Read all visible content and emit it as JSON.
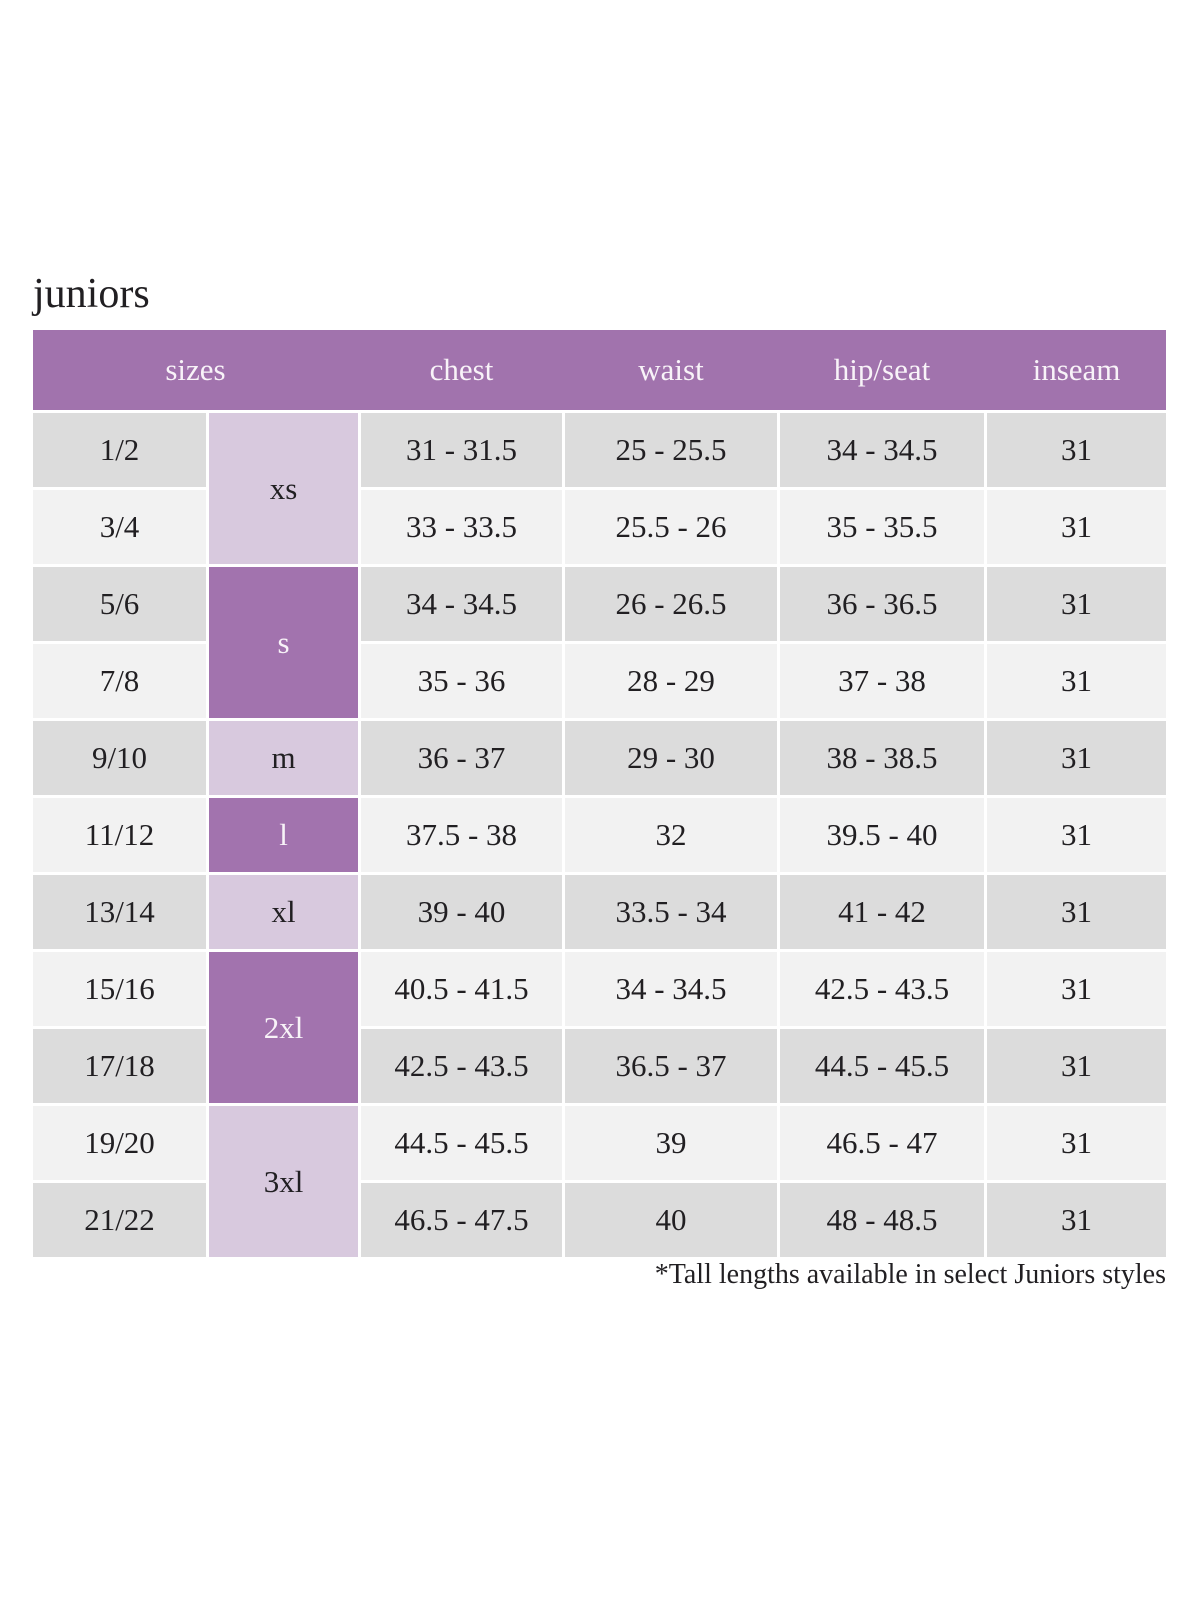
{
  "theme": {
    "page_bg": "#ffffff",
    "body_text": "#211f22",
    "header_bg": "#a173ad",
    "header_text": "#f8f3f8",
    "dark_cell_bg": "#a273ae",
    "light_cell_bg": "#d8c9de",
    "row_shade_a": "#dcdcdc",
    "row_shade_b": "#f2f2f2"
  },
  "page": {
    "title": "juniors",
    "footnote": "*Tall lengths available in select Juniors styles"
  },
  "table": {
    "headers": {
      "sizes": "sizes",
      "chest": "chest",
      "waist": "waist",
      "hip_seat": "hip/seat",
      "inseam": "inseam"
    },
    "size_groups": [
      {
        "label": "xs",
        "span": 2,
        "shade": "light"
      },
      {
        "label": "s",
        "span": 2,
        "shade": "dark"
      },
      {
        "label": "m",
        "span": 1,
        "shade": "light"
      },
      {
        "label": "l",
        "span": 1,
        "shade": "dark"
      },
      {
        "label": "xl",
        "span": 1,
        "shade": "light"
      },
      {
        "label": "2xl",
        "span": 2,
        "shade": "dark"
      },
      {
        "label": "3xl",
        "span": 2,
        "shade": "light"
      }
    ],
    "rows": [
      {
        "size": "1/2",
        "chest": "31 - 31.5",
        "waist": "25 - 25.5",
        "hip_seat": "34 - 34.5",
        "inseam": "31"
      },
      {
        "size": "3/4",
        "chest": "33 - 33.5",
        "waist": "25.5 - 26",
        "hip_seat": "35 - 35.5",
        "inseam": "31"
      },
      {
        "size": "5/6",
        "chest": "34 - 34.5",
        "waist": "26 - 26.5",
        "hip_seat": "36 - 36.5",
        "inseam": "31"
      },
      {
        "size": "7/8",
        "chest": "35 - 36",
        "waist": "28 - 29",
        "hip_seat": "37 - 38",
        "inseam": "31"
      },
      {
        "size": "9/10",
        "chest": "36 - 37",
        "waist": "29 - 30",
        "hip_seat": "38 - 38.5",
        "inseam": "31"
      },
      {
        "size": "11/12",
        "chest": "37.5 - 38",
        "waist": "32",
        "hip_seat": "39.5 - 40",
        "inseam": "31"
      },
      {
        "size": "13/14",
        "chest": "39 - 40",
        "waist": "33.5 - 34",
        "hip_seat": "41 - 42",
        "inseam": "31"
      },
      {
        "size": "15/16",
        "chest": "40.5 - 41.5",
        "waist": "34 - 34.5",
        "hip_seat": "42.5 - 43.5",
        "inseam": "31"
      },
      {
        "size": "17/18",
        "chest": "42.5 - 43.5",
        "waist": "36.5 - 37",
        "hip_seat": "44.5 - 45.5",
        "inseam": "31"
      },
      {
        "size": "19/20",
        "chest": "44.5 - 45.5",
        "waist": "39",
        "hip_seat": "46.5 - 47",
        "inseam": "31"
      },
      {
        "size": "21/22",
        "chest": "46.5 - 47.5",
        "waist": "40",
        "hip_seat": "48 - 48.5",
        "inseam": "31"
      }
    ]
  }
}
